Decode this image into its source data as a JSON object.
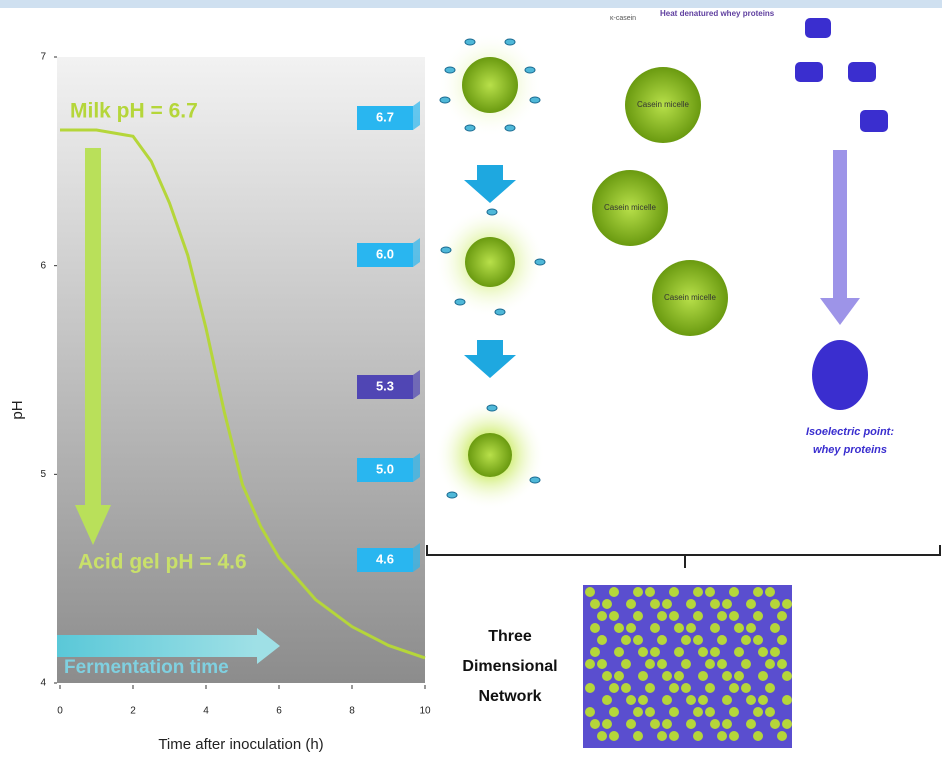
{
  "chart_data": {
    "type": "line",
    "xlabel": "Time after inoculation (h)",
    "ylabel": "pH",
    "x": [
      0,
      1,
      2,
      2.5,
      3,
      3.5,
      4,
      4.5,
      5,
      5.5,
      6,
      7,
      8,
      9,
      10
    ],
    "series": [
      {
        "color": "#b5d63a",
        "values": [
          6.65,
          6.65,
          6.62,
          6.5,
          6.3,
          6.05,
          5.7,
          5.3,
          4.95,
          4.75,
          4.6,
          4.4,
          4.27,
          4.18,
          4.12
        ]
      }
    ],
    "xlim": [
      0,
      10
    ],
    "xticks": [
      0,
      2,
      4,
      6,
      8,
      10
    ],
    "ylim": [
      4,
      7
    ],
    "yticks": [
      4,
      5,
      6,
      7
    ],
    "annotations": [
      "Milk pH = 6.7",
      "Acid gel pH = 4.6",
      "Fermentation time"
    ]
  },
  "diagram": {
    "badges": [
      "6.7",
      "6.0",
      "5.3",
      "5.0",
      "4.6"
    ],
    "kappa_casein": "κ-casein",
    "whey_label": "Heat denatured whey proteins",
    "micelles": [
      "Casein micelle",
      "Casein micelle",
      "Casein micelle"
    ],
    "isoelectric": [
      "Isoelectric point:",
      "whey proteins"
    ],
    "network": [
      "Three",
      "Dimensional",
      "Network"
    ]
  }
}
